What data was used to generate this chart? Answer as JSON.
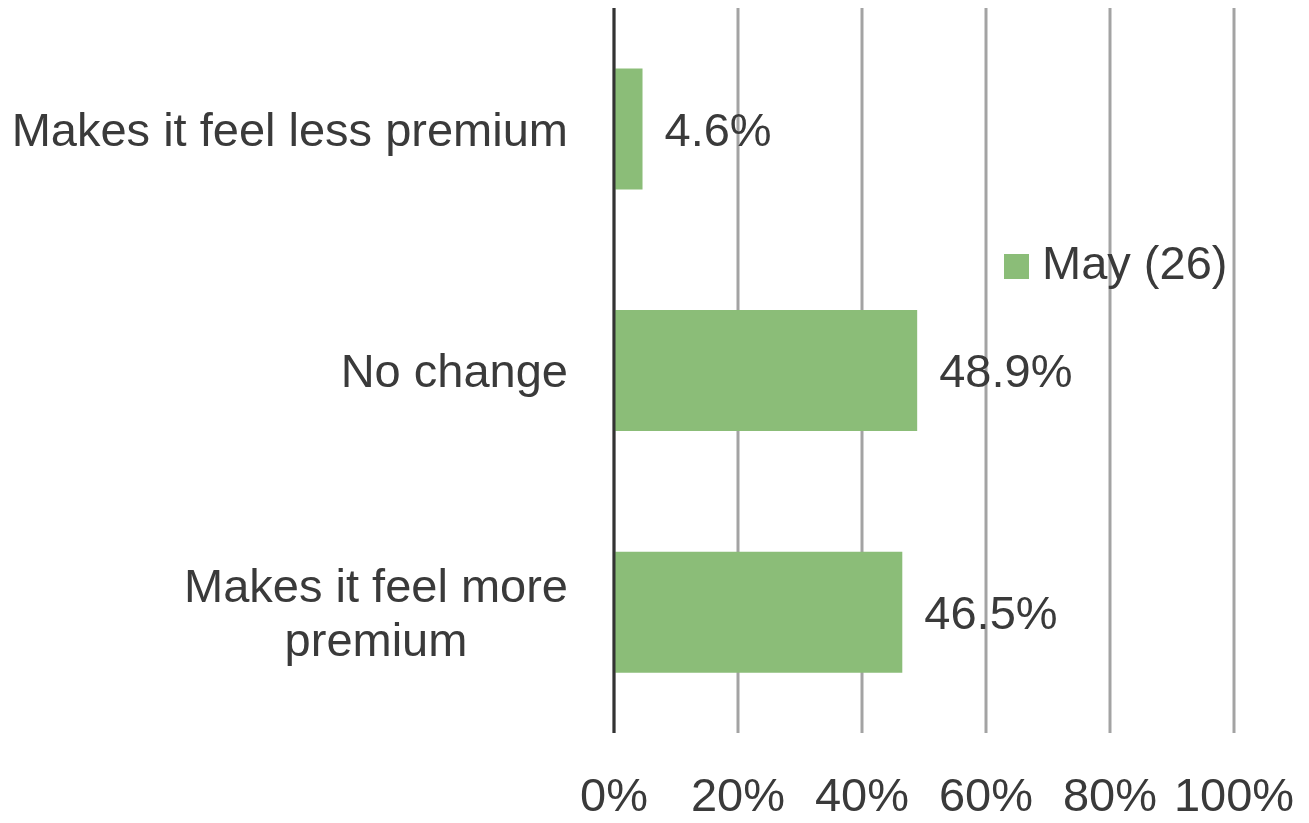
{
  "chart_data": {
    "type": "bar",
    "orientation": "horizontal",
    "categories": [
      "Makes it feel less premium",
      "No change",
      "Makes it feel more premium"
    ],
    "series": [
      {
        "name": "May (26)",
        "color": "#8bbd78",
        "values": [
          4.6,
          48.9,
          46.5
        ],
        "value_labels": [
          "4.6%",
          "48.9%",
          "46.5%"
        ]
      }
    ],
    "xlim": [
      0,
      100
    ],
    "xticks": [
      {
        "value": 0,
        "label": "0%"
      },
      {
        "value": 20,
        "label": "20%"
      },
      {
        "value": 40,
        "label": "40%"
      },
      {
        "value": 60,
        "label": "60%"
      },
      {
        "value": 80,
        "label": "80%"
      },
      {
        "value": 100,
        "label": "100%"
      }
    ],
    "grid": "x",
    "legend": "right"
  }
}
